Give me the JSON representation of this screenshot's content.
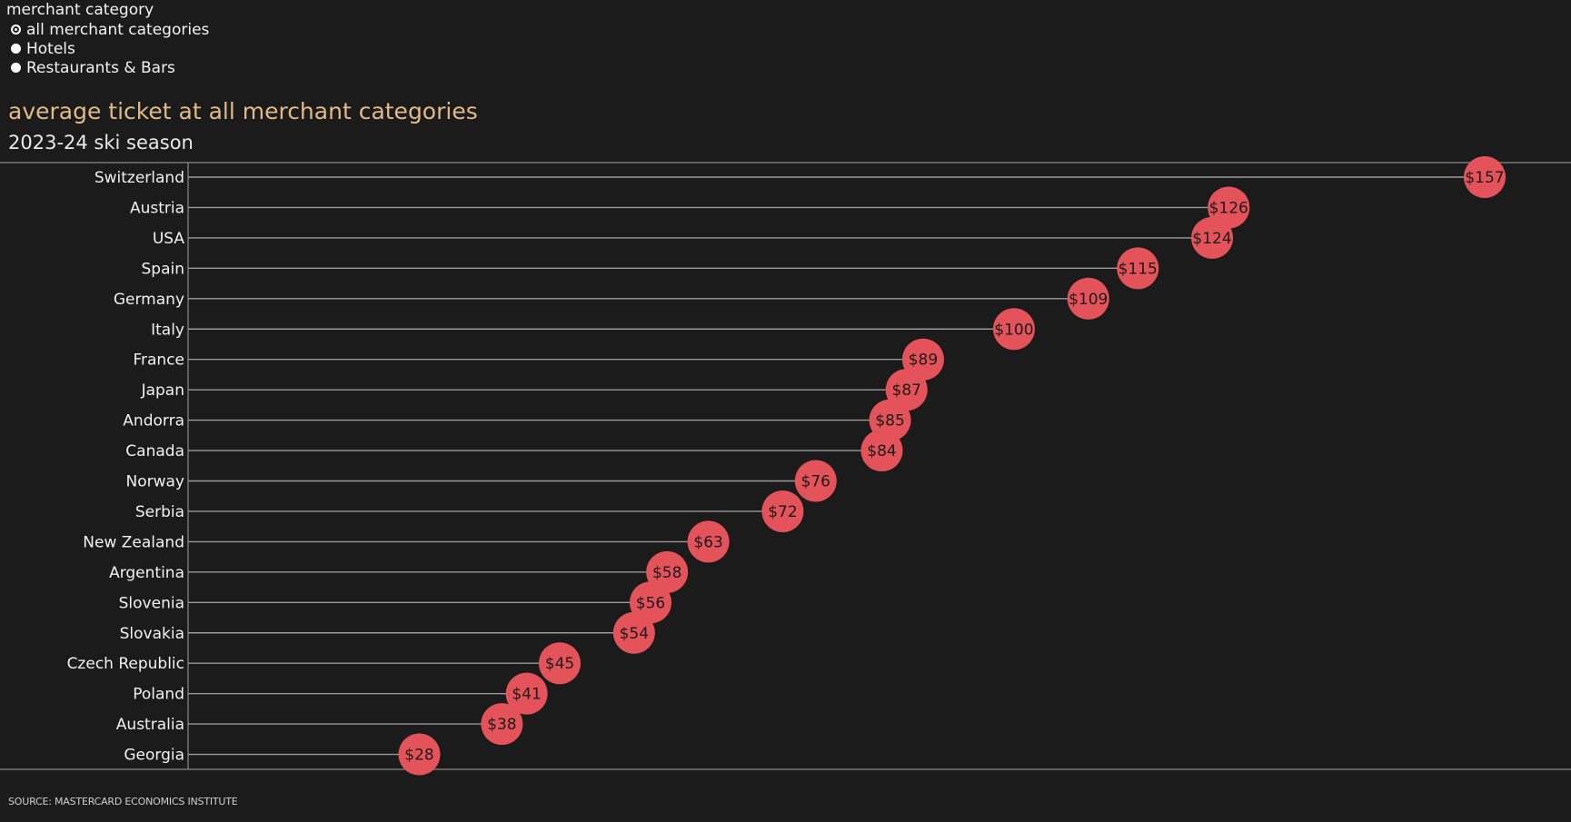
{
  "filter": {
    "title": "merchant category",
    "options": [
      {
        "label": "all merchant categories",
        "selected": true
      },
      {
        "label": "Hotels",
        "selected": false
      },
      {
        "label": "Restaurants & Bars",
        "selected": false
      }
    ]
  },
  "source": "SOURCE: MASTERCARD ECONOMICS INSTITUTE",
  "colors": {
    "dot": "#e5535a",
    "stem": "#9a9a9a",
    "title": "#e0b986",
    "background": "#1b1b1b"
  },
  "chart_data": {
    "type": "scatter",
    "style": "lollipop",
    "title": "average ticket at all merchant categories",
    "subtitle": "2023-24 ski season",
    "xlabel": "",
    "ylabel": "",
    "value_prefix": "$",
    "grid": false,
    "legend": "none",
    "xlim": [
      0,
      160
    ],
    "categories": [
      "Switzerland",
      "Austria",
      "USA",
      "Spain",
      "Germany",
      "Italy",
      "France",
      "Japan",
      "Andorra",
      "Canada",
      "Norway",
      "Serbia",
      "New Zealand",
      "Argentina",
      "Slovenia",
      "Slovakia",
      "Czech Republic",
      "Poland",
      "Australia",
      "Georgia"
    ],
    "values": [
      157,
      126,
      124,
      115,
      109,
      100,
      89,
      87,
      85,
      84,
      76,
      72,
      63,
      58,
      56,
      54,
      45,
      41,
      38,
      28
    ]
  }
}
